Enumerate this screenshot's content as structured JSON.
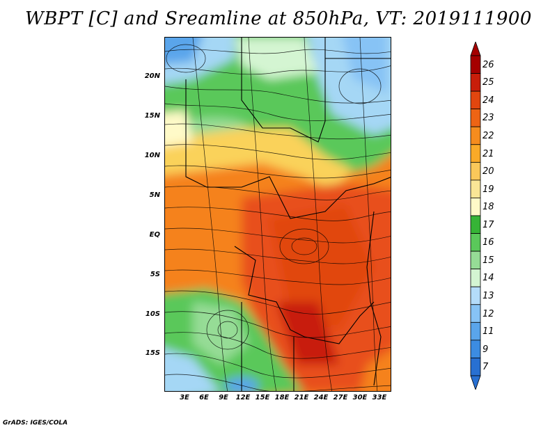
{
  "title": "WBPT [C] and Sreamline at 850hPa, VT: 2019111900",
  "footer": "GrADS: IGES/COLA",
  "lat_labels": [
    "20N",
    "15N",
    "10N",
    "5N",
    "EQ",
    "5S",
    "10S",
    "15S"
  ],
  "lon_labels": [
    "3E",
    "6E",
    "9E",
    "12E",
    "15E",
    "18E",
    "21E",
    "24E",
    "27E",
    "30E",
    "33E"
  ],
  "colorbar": {
    "labels": [
      "26",
      "25",
      "24",
      "23",
      "22",
      "21",
      "20",
      "19",
      "18",
      "17",
      "16",
      "15",
      "14",
      "13",
      "12",
      "11",
      "9",
      "7"
    ],
    "colors": [
      "#a50000",
      "#c81e0a",
      "#e1460f",
      "#ee6414",
      "#f58c1e",
      "#faaa28",
      "#fac85a",
      "#fae696",
      "#fffac8",
      "#36b436",
      "#5ac85a",
      "#96dc96",
      "#d4f5d2",
      "#b4dcfa",
      "#87c3f5",
      "#5aa5eb",
      "#3c8ce1",
      "#2870d2"
    ]
  },
  "map_colors": {
    "orange_red": "#e8501e",
    "orange": "#f5821e",
    "yellow": "#fad25a",
    "green": "#5ac85a",
    "light_blue": "#a5d7f5",
    "blue": "#3c8ce1"
  }
}
